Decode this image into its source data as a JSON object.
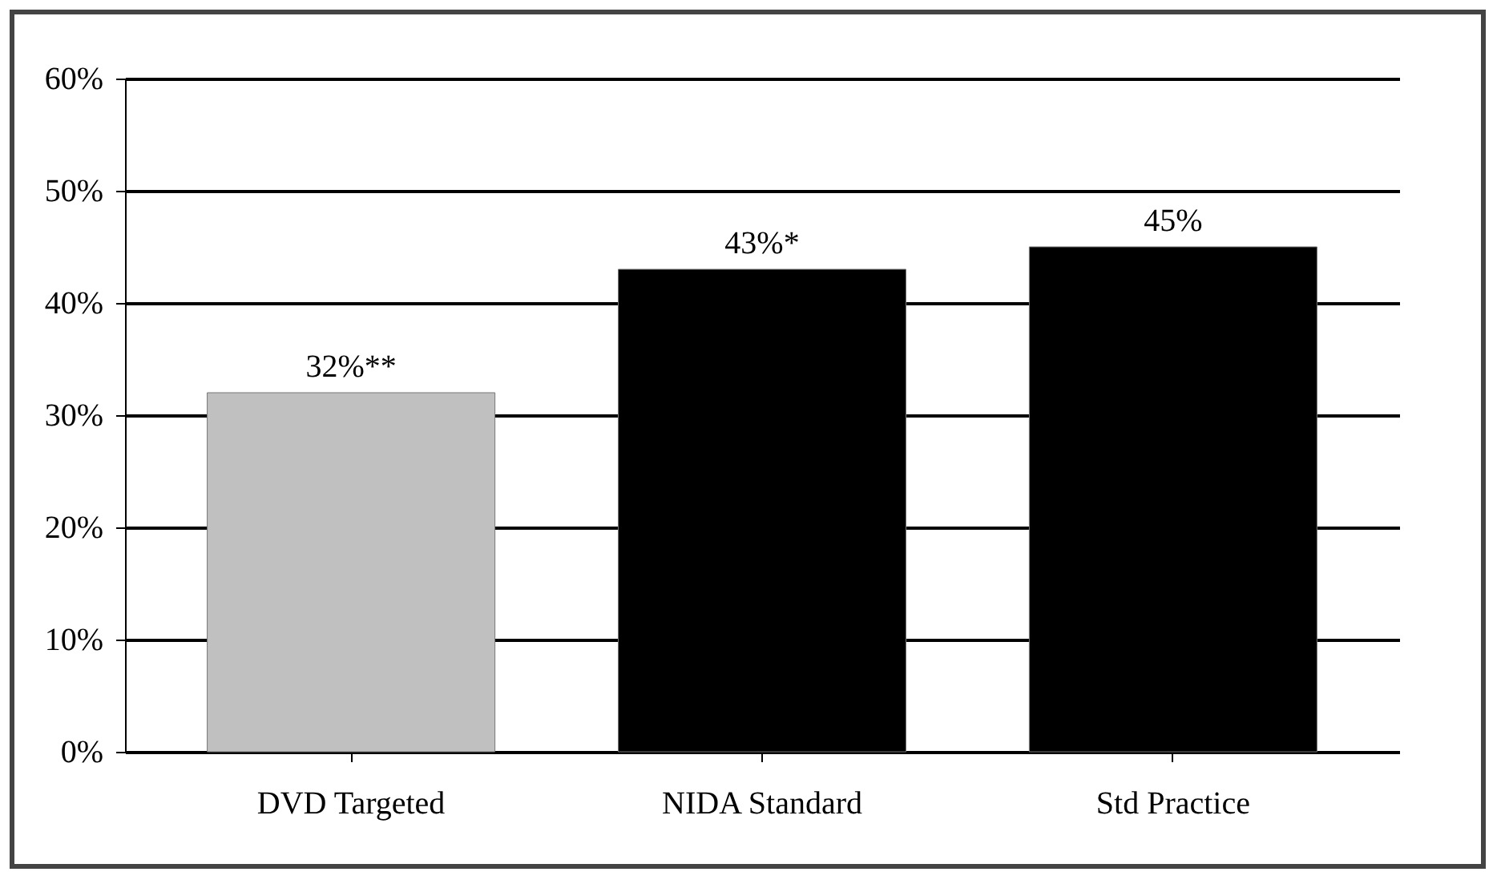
{
  "chart_data": {
    "type": "bar",
    "categories": [
      "DVD Targeted",
      "NIDA Standard",
      "Std Practice"
    ],
    "values": [
      32,
      43,
      45
    ],
    "colors": [
      "#c0c0c0",
      "#000000",
      "#000000"
    ],
    "value_labels": [
      "32%**",
      "43%*",
      "45%"
    ],
    "ylim": [
      0,
      60
    ],
    "yticks": [
      {
        "value": 0,
        "label": "0%"
      },
      {
        "value": 10,
        "label": "10%"
      },
      {
        "value": 20,
        "label": "20%"
      },
      {
        "value": 30,
        "label": "30%"
      },
      {
        "value": 40,
        "label": "40%"
      },
      {
        "value": 50,
        "label": "50%"
      },
      {
        "value": 60,
        "label": "60%"
      }
    ],
    "grid": "y"
  }
}
